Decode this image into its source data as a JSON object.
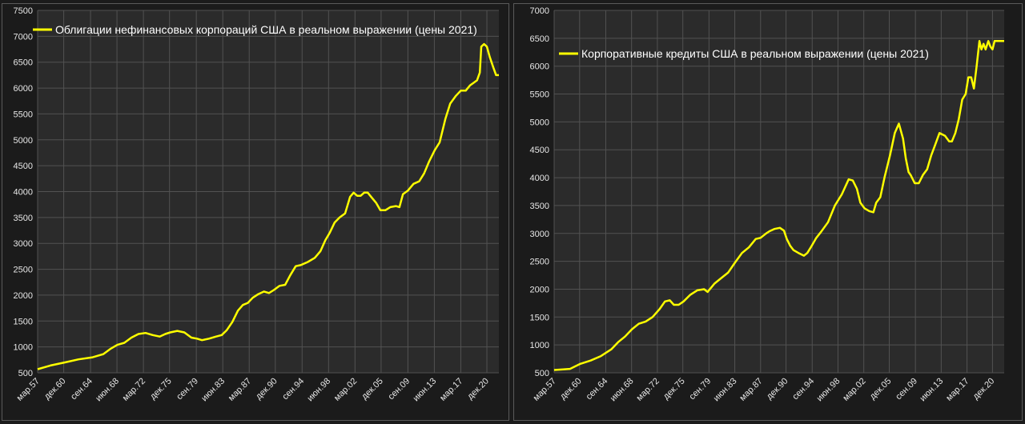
{
  "chart_data": [
    {
      "type": "line",
      "title": "",
      "legend_position": "top-left",
      "grid": true,
      "ylim": [
        500,
        7500
      ],
      "y_ticks": [
        500,
        1000,
        1500,
        2000,
        2500,
        3000,
        3500,
        4000,
        4500,
        5000,
        5500,
        6000,
        6500,
        7000,
        7500
      ],
      "x_range": [
        1957.2,
        2022.6
      ],
      "x_ticks": [
        {
          "label": "мар.57",
          "x": 1957.2
        },
        {
          "label": "дек.60",
          "x": 1960.9
        },
        {
          "label": "сен.64",
          "x": 1964.7
        },
        {
          "label": "июн.68",
          "x": 1968.45
        },
        {
          "label": "мар.72",
          "x": 1972.2
        },
        {
          "label": "дек.75",
          "x": 1975.9
        },
        {
          "label": "сен.79",
          "x": 1979.7
        },
        {
          "label": "июн.83",
          "x": 1983.45
        },
        {
          "label": "мар.87",
          "x": 1987.2
        },
        {
          "label": "дек.90",
          "x": 1990.9
        },
        {
          "label": "сен.94",
          "x": 1994.7
        },
        {
          "label": "июн.98",
          "x": 1998.45
        },
        {
          "label": "мар.02",
          "x": 2002.2
        },
        {
          "label": "дек.05",
          "x": 2005.9
        },
        {
          "label": "сен.09",
          "x": 2009.7
        },
        {
          "label": "июн.13",
          "x": 2013.45
        },
        {
          "label": "мар.17",
          "x": 2017.2
        },
        {
          "label": "дек.20",
          "x": 2020.9
        }
      ],
      "series": [
        {
          "name": "Облигации нефинансовых корпораций США в реальном выражении (цены 2021)",
          "color": "#ffff00",
          "x": [
            1957.2,
            1959.0,
            1961.0,
            1963.0,
            1965.0,
            1966.5,
            1967.5,
            1968.5,
            1969.5,
            1970.5,
            1971.5,
            1972.5,
            1973.5,
            1974.5,
            1975.3,
            1976.0,
            1977.0,
            1978.0,
            1979.0,
            1979.8,
            1980.5,
            1981.5,
            1982.5,
            1983.3,
            1984.0,
            1984.8,
            1985.6,
            1986.3,
            1987.0,
            1987.7,
            1988.5,
            1989.3,
            1990.0,
            1990.7,
            1991.5,
            1992.3,
            1993.0,
            1993.8,
            1994.5,
            1995.5,
            1996.5,
            1997.3,
            1998.0,
            1998.6,
            1999.3,
            2000.0,
            2000.8,
            2001.5,
            2002.0,
            2002.5,
            2003.0,
            2003.5,
            2004.0,
            2004.6,
            2005.2,
            2005.8,
            2006.5,
            2007.2,
            2008.0,
            2008.5,
            2009.0,
            2009.7,
            2010.5,
            2011.3,
            2012.0,
            2012.7,
            2013.5,
            2014.2,
            2015.0,
            2015.7,
            2016.5,
            2017.2,
            2017.9,
            2018.5,
            2019.0,
            2019.5,
            2019.9,
            2020.1,
            2020.5,
            2020.9,
            2021.3,
            2021.8,
            2022.2,
            2022.6
          ],
          "values": [
            570,
            640,
            700,
            760,
            800,
            860,
            960,
            1040,
            1080,
            1180,
            1250,
            1270,
            1230,
            1200,
            1250,
            1280,
            1310,
            1280,
            1180,
            1160,
            1130,
            1160,
            1200,
            1230,
            1320,
            1480,
            1700,
            1810,
            1850,
            1950,
            2020,
            2070,
            2040,
            2100,
            2180,
            2200,
            2380,
            2560,
            2580,
            2640,
            2720,
            2850,
            3060,
            3200,
            3400,
            3500,
            3580,
            3900,
            3980,
            3920,
            3920,
            3980,
            3980,
            3880,
            3780,
            3640,
            3640,
            3700,
            3720,
            3700,
            3950,
            4020,
            4150,
            4200,
            4350,
            4580,
            4800,
            4950,
            5400,
            5700,
            5850,
            5950,
            5950,
            6050,
            6100,
            6150,
            6300,
            6800,
            6850,
            6800,
            6600,
            6400,
            6250,
            6250
          ]
        }
      ]
    },
    {
      "type": "line",
      "title": "",
      "legend_position": "top-left",
      "grid": true,
      "ylim": [
        500,
        7000
      ],
      "y_ticks": [
        500,
        1000,
        1500,
        2000,
        2500,
        3000,
        3500,
        4000,
        4500,
        5000,
        5500,
        6000,
        6500,
        7000
      ],
      "x_range": [
        1957.2,
        2022.6
      ],
      "x_ticks": [
        {
          "label": "мар.57",
          "x": 1957.2
        },
        {
          "label": "дек.60",
          "x": 1960.9
        },
        {
          "label": "сен.64",
          "x": 1964.7
        },
        {
          "label": "июн.68",
          "x": 1968.45
        },
        {
          "label": "мар.72",
          "x": 1972.2
        },
        {
          "label": "дек.75",
          "x": 1975.9
        },
        {
          "label": "сен.79",
          "x": 1979.7
        },
        {
          "label": "июн.83",
          "x": 1983.45
        },
        {
          "label": "мар.87",
          "x": 1987.2
        },
        {
          "label": "дек.90",
          "x": 1990.9
        },
        {
          "label": "сен.94",
          "x": 1994.7
        },
        {
          "label": "июн.98",
          "x": 1998.45
        },
        {
          "label": "мар.02",
          "x": 2002.2
        },
        {
          "label": "дек.05",
          "x": 2005.9
        },
        {
          "label": "сен.09",
          "x": 2009.7
        },
        {
          "label": "июн.13",
          "x": 2013.45
        },
        {
          "label": "мар.17",
          "x": 2017.2
        },
        {
          "label": "дек.20",
          "x": 2020.9
        }
      ],
      "series": [
        {
          "name": "Корпоративные кредиты США в реальном выражении (цены 2021)",
          "color": "#ffff00",
          "x": [
            1957.2,
            1958.5,
            1959.5,
            1961.0,
            1962.5,
            1964.0,
            1965.5,
            1966.5,
            1967.5,
            1968.5,
            1969.5,
            1970.5,
            1971.5,
            1972.5,
            1973.3,
            1974.0,
            1974.6,
            1975.3,
            1976.0,
            1977.0,
            1978.0,
            1979.0,
            1979.5,
            1980.5,
            1981.5,
            1982.5,
            1983.5,
            1984.5,
            1985.5,
            1986.5,
            1987.2,
            1988.0,
            1988.5,
            1989.2,
            1990.0,
            1990.6,
            1991.0,
            1991.5,
            1992.0,
            1992.7,
            1993.5,
            1994.0,
            1994.5,
            1995.3,
            1996.0,
            1997.0,
            1998.0,
            1999.0,
            2000.0,
            2000.6,
            2001.2,
            2001.7,
            2002.3,
            2003.0,
            2003.6,
            2004.0,
            2004.6,
            2005.2,
            2006.0,
            2006.7,
            2007.3,
            2007.9,
            2008.3,
            2008.7,
            2009.0,
            2009.6,
            2010.2,
            2010.8,
            2011.4,
            2012.0,
            2012.6,
            2013.2,
            2014.0,
            2014.6,
            2015.0,
            2015.5,
            2016.0,
            2016.5,
            2017.0,
            2017.4,
            2017.8,
            2018.2,
            2018.6,
            2019.0,
            2019.3,
            2019.6,
            2019.9,
            2020.3,
            2020.6,
            2020.9,
            2021.2,
            2021.5,
            2021.9,
            2022.3,
            2022.6
          ],
          "values": [
            550,
            560,
            570,
            660,
            720,
            800,
            920,
            1050,
            1150,
            1280,
            1380,
            1420,
            1500,
            1640,
            1780,
            1800,
            1720,
            1720,
            1780,
            1900,
            1980,
            2000,
            1950,
            2100,
            2200,
            2300,
            2480,
            2650,
            2750,
            2900,
            2920,
            3000,
            3040,
            3080,
            3100,
            3050,
            2900,
            2780,
            2700,
            2650,
            2600,
            2650,
            2750,
            2920,
            3030,
            3200,
            3500,
            3700,
            3970,
            3950,
            3800,
            3550,
            3450,
            3400,
            3380,
            3550,
            3650,
            4000,
            4400,
            4800,
            4970,
            4700,
            4350,
            4100,
            4050,
            3900,
            3900,
            4050,
            4150,
            4400,
            4600,
            4800,
            4750,
            4650,
            4650,
            4800,
            5050,
            5400,
            5500,
            5800,
            5800,
            5600,
            6000,
            6450,
            6300,
            6400,
            6300,
            6450,
            6350,
            6300,
            6450,
            6450,
            6450,
            6450,
            6450
          ]
        }
      ]
    }
  ]
}
